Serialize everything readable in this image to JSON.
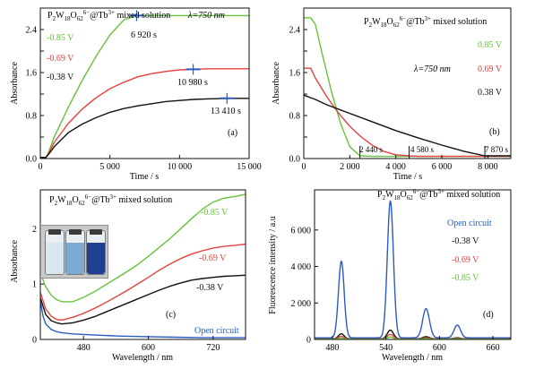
{
  "figure": {
    "colors": {
      "green": "#66c33b",
      "red": "#e5413d",
      "black": "#111111",
      "blue": "#2b5cc3",
      "text": "#111111"
    }
  },
  "panels": {
    "a": {
      "tag": "(a)",
      "header": "P2W18O62^6-@Tb^3+ mixed solution",
      "lambda_label": "λ=750 nm",
      "ylabel": "Absorbance",
      "xlabel": "Time / s",
      "legend": [
        "-0.85 V",
        "-0.69 V",
        "-0.38 V"
      ],
      "time_labels": [
        "6 920 s",
        "10 980 s",
        "13 410 s"
      ]
    },
    "b": {
      "tag": "(b)",
      "header": "P2W18O62^6-@Tb^3+ mixed solution",
      "lambda_label": "λ=750 nm",
      "ylabel": "Absorbance",
      "xlabel": "Time / s",
      "legend": [
        "0.85 V",
        "0.69 V",
        "0.38 V"
      ],
      "time_labels": [
        "2 440 s",
        "4 580 s",
        "7 870 s"
      ]
    },
    "c": {
      "tag": "(c)",
      "header": "P2W18O62^6-@Tb^3+ mixed solution",
      "ylabel": "Absorbance",
      "xlabel": "Wavelength / nm",
      "curve_labels": [
        "-0.85 V",
        "-0.69 V",
        "-0.38 V",
        "Open circuit"
      ]
    },
    "d": {
      "tag": "(d)",
      "header": "P2W18O62^6-@Tb^3+ mixed solution",
      "ylabel": "Fluorescence intensity / a.u",
      "xlabel": "Wavelength / nm",
      "legend": [
        "Open circuit",
        "-0.38 V",
        "-0.69 V",
        "-0.85 V"
      ]
    }
  },
  "chart_data": [
    {
      "panel": "a",
      "type": "line",
      "xlim": [
        0,
        15000
      ],
      "ylim": [
        0,
        2.8
      ],
      "xticks": [
        0,
        5000,
        10000,
        15000
      ],
      "xtick_labels": [
        "0",
        "5 000",
        "10 000",
        "15 000"
      ],
      "yticks": [
        0.0,
        0.4,
        0.8,
        1.2,
        1.6,
        2.0,
        2.4
      ],
      "ytick_labels": [
        "0.0",
        "",
        "0.8",
        "",
        "1.6",
        "",
        "2.4"
      ],
      "series": [
        {
          "name": "-0.85 V",
          "color": "green",
          "x": [
            0,
            400,
            600,
            1000,
            2000,
            3000,
            4000,
            5000,
            6000,
            6900,
            7500,
            10000,
            15000
          ],
          "y": [
            0.02,
            0.02,
            0.12,
            0.4,
            0.95,
            1.45,
            1.9,
            2.3,
            2.58,
            2.66,
            2.66,
            2.66,
            2.66
          ]
        },
        {
          "name": "-0.69 V",
          "color": "red",
          "x": [
            0,
            400,
            600,
            1000,
            2000,
            3000,
            4000,
            5000,
            6000,
            7000,
            8000,
            9000,
            10000,
            10980,
            12000,
            15000
          ],
          "y": [
            0.02,
            0.02,
            0.1,
            0.3,
            0.65,
            0.92,
            1.13,
            1.3,
            1.42,
            1.52,
            1.58,
            1.62,
            1.65,
            1.66,
            1.67,
            1.67
          ]
        },
        {
          "name": "-0.38 V",
          "color": "black",
          "x": [
            0,
            400,
            600,
            1000,
            2000,
            3000,
            4000,
            5000,
            6000,
            7000,
            8000,
            9000,
            10000,
            11000,
            12000,
            13410,
            14000,
            15000
          ],
          "y": [
            0.02,
            0.02,
            0.08,
            0.22,
            0.48,
            0.64,
            0.76,
            0.86,
            0.93,
            0.98,
            1.02,
            1.06,
            1.08,
            1.1,
            1.11,
            1.12,
            1.12,
            1.12
          ]
        }
      ]
    },
    {
      "panel": "b",
      "type": "line",
      "xlim": [
        0,
        9000
      ],
      "ylim": [
        0,
        2.8
      ],
      "xticks": [
        0,
        2000,
        4000,
        6000,
        8000
      ],
      "xtick_labels": [
        "0",
        "2 000",
        "4 000",
        "6 000",
        "8 000"
      ],
      "yticks": [
        0.0,
        0.4,
        0.8,
        1.2,
        1.6,
        2.0,
        2.4
      ],
      "ytick_labels": [
        "0.0",
        "",
        "0.8",
        "",
        "1.6",
        "",
        "2.4"
      ],
      "series": [
        {
          "name": "0.85 V",
          "color": "green",
          "x": [
            0,
            300,
            500,
            800,
            1200,
            1600,
            2000,
            2440,
            3000,
            9000
          ],
          "y": [
            2.62,
            2.62,
            2.5,
            1.95,
            1.25,
            0.65,
            0.22,
            0.05,
            0.04,
            0.04
          ]
        },
        {
          "name": "0.69 V",
          "color": "red",
          "x": [
            0,
            300,
            500,
            1000,
            1500,
            2000,
            2500,
            3000,
            3500,
            4000,
            4580,
            5000,
            9000
          ],
          "y": [
            1.68,
            1.68,
            1.5,
            1.15,
            0.85,
            0.6,
            0.4,
            0.24,
            0.13,
            0.07,
            0.05,
            0.04,
            0.04
          ]
        },
        {
          "name": "0.38 V",
          "color": "black",
          "x": [
            0,
            500,
            1000,
            2000,
            3000,
            4000,
            5000,
            6000,
            7000,
            7870,
            9000
          ],
          "y": [
            1.18,
            1.1,
            1.0,
            0.84,
            0.68,
            0.52,
            0.38,
            0.25,
            0.13,
            0.05,
            0.05
          ]
        }
      ]
    },
    {
      "panel": "c",
      "type": "line",
      "xlim": [
        400,
        780
      ],
      "ylim": [
        0,
        2.7
      ],
      "xticks": [
        480,
        600,
        720
      ],
      "xtick_labels": [
        "480",
        "600",
        "720"
      ],
      "yticks": [
        0,
        1,
        2
      ],
      "ytick_labels": [
        "0",
        "1",
        "2"
      ],
      "series": [
        {
          "name": "-0.85 V",
          "color": "green",
          "x": [
            400,
            410,
            420,
            430,
            440,
            460,
            480,
            500,
            520,
            540,
            560,
            580,
            600,
            620,
            640,
            660,
            680,
            700,
            720,
            740,
            760,
            780
          ],
          "y": [
            1.2,
            0.95,
            0.8,
            0.72,
            0.68,
            0.68,
            0.76,
            0.86,
            0.98,
            1.1,
            1.22,
            1.35,
            1.5,
            1.66,
            1.82,
            2.0,
            2.18,
            2.35,
            2.48,
            2.55,
            2.58,
            2.62
          ]
        },
        {
          "name": "-0.69 V",
          "color": "red",
          "x": [
            400,
            410,
            420,
            430,
            440,
            460,
            480,
            500,
            520,
            540,
            560,
            580,
            600,
            620,
            640,
            660,
            680,
            700,
            720,
            740,
            760,
            780
          ],
          "y": [
            0.85,
            0.55,
            0.42,
            0.36,
            0.35,
            0.4,
            0.47,
            0.56,
            0.66,
            0.77,
            0.88,
            1.0,
            1.12,
            1.25,
            1.36,
            1.46,
            1.54,
            1.6,
            1.65,
            1.68,
            1.7,
            1.72
          ]
        },
        {
          "name": "-0.38 V",
          "color": "black",
          "x": [
            400,
            410,
            420,
            430,
            440,
            460,
            480,
            500,
            520,
            540,
            560,
            580,
            600,
            620,
            640,
            660,
            680,
            700,
            720,
            740,
            760,
            780
          ],
          "y": [
            0.75,
            0.45,
            0.34,
            0.3,
            0.28,
            0.3,
            0.35,
            0.41,
            0.49,
            0.57,
            0.65,
            0.73,
            0.81,
            0.89,
            0.96,
            1.02,
            1.07,
            1.1,
            1.12,
            1.14,
            1.15,
            1.16
          ]
        },
        {
          "name": "Open circuit",
          "color": "blue",
          "x": [
            400,
            405,
            410,
            420,
            430,
            440,
            460,
            480,
            500,
            550,
            600,
            650,
            700,
            780
          ],
          "y": [
            0.7,
            0.42,
            0.28,
            0.18,
            0.14,
            0.12,
            0.1,
            0.09,
            0.08,
            0.06,
            0.05,
            0.04,
            0.03,
            0.03
          ]
        }
      ]
    },
    {
      "panel": "d",
      "type": "line",
      "xlim": [
        460,
        680
      ],
      "ylim": [
        0,
        8200
      ],
      "xticks": [
        480,
        540,
        600,
        660
      ],
      "xtick_labels": [
        "480",
        "540",
        "600",
        "660"
      ],
      "yticks": [
        0,
        2000,
        4000,
        6000
      ],
      "ytick_labels": [
        "0",
        "2 000",
        "4 000",
        "6 000"
      ],
      "series": [
        {
          "name": "Open circuit",
          "color": "blue",
          "base": 90,
          "peaks": [
            [
              490,
              4200,
              3.2
            ],
            [
              545,
              7500,
              3.4
            ],
            [
              585,
              1600,
              3.8
            ],
            [
              620,
              700,
              3.6
            ]
          ]
        },
        {
          "name": "-0.38 V",
          "color": "black",
          "base": 30,
          "peaks": [
            [
              490,
              280,
              3.2
            ],
            [
              545,
              480,
              3.4
            ],
            [
              585,
              120,
              3.8
            ],
            [
              620,
              60,
              3.6
            ]
          ]
        },
        {
          "name": "-0.69 V",
          "color": "red",
          "base": 20,
          "peaks": [
            [
              490,
              150,
              3.2
            ],
            [
              545,
              260,
              3.4
            ],
            [
              585,
              70,
              3.8
            ],
            [
              620,
              35,
              3.6
            ]
          ]
        },
        {
          "name": "-0.85 V",
          "color": "green",
          "base": 15,
          "peaks": [
            [
              490,
              60,
              3.2
            ],
            [
              545,
              120,
              3.4
            ],
            [
              585,
              30,
              3.8
            ],
            [
              620,
              15,
              3.6
            ]
          ]
        }
      ]
    }
  ]
}
